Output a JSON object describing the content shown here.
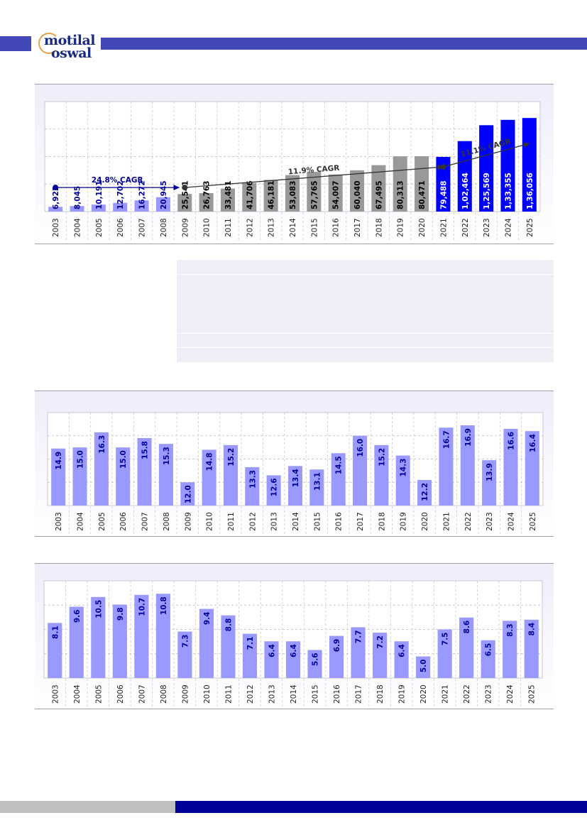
{
  "brand": {
    "logo_line1": "motilal",
    "logo_line2": "oswal"
  },
  "colors": {
    "header": "#4347b8",
    "bar_light": "#9999ff",
    "bar_grey": "#999999",
    "bar_blue": "#0000ff",
    "footer_grey": "#c0c0c0",
    "footer_blue": "#000099",
    "annotation_dark": "#333333",
    "annotation_blue": "#000099"
  },
  "chart_data": [
    {
      "type": "bar",
      "categories": [
        "2003",
        "2004",
        "2005",
        "2006",
        "2007",
        "2008",
        "2009",
        "2010",
        "2011",
        "2012",
        "2013",
        "2014",
        "2015",
        "2016",
        "2017",
        "2018",
        "2019",
        "2020",
        "2021",
        "2022",
        "2023",
        "2024",
        "2025"
      ],
      "values": [
        6922,
        8045,
        10191,
        12702,
        16272,
        20945,
        25541,
        26763,
        33481,
        41706,
        46181,
        53083,
        57765,
        54007,
        60040,
        67495,
        80313,
        80471,
        79488,
        102464,
        125569,
        133355,
        136056
      ],
      "labels": [
        "6,922",
        "8,045",
        "10,191",
        "12,702",
        "16,272",
        "20,945",
        "25,541",
        "26,763",
        "33,481",
        "41,706",
        "46,181",
        "53,083",
        "57,765",
        "54,007",
        "60,040",
        "67,495",
        "80,313",
        "80,471",
        "79,488",
        "1,02,464",
        "1,25,569",
        "1,33,355",
        "1,36,056"
      ],
      "bar_colors": [
        "#9999ff",
        "#9999ff",
        "#9999ff",
        "#9999ff",
        "#9999ff",
        "#9999ff",
        "#999999",
        "#999999",
        "#999999",
        "#999999",
        "#999999",
        "#999999",
        "#999999",
        "#999999",
        "#999999",
        "#999999",
        "#999999",
        "#999999",
        "#0000ff",
        "#0000ff",
        "#0000ff",
        "#0000ff",
        "#0000ff"
      ],
      "label_colors": [
        "#000099",
        "#000099",
        "#000099",
        "#000099",
        "#000099",
        "#000099",
        "#000000",
        "#000000",
        "#000000",
        "#000000",
        "#000000",
        "#000000",
        "#000000",
        "#000000",
        "#000000",
        "#000000",
        "#000000",
        "#000000",
        "#ffffff",
        "#ffffff",
        "#ffffff",
        "#ffffff",
        "#ffffff"
      ],
      "ylim": [
        0,
        160000
      ],
      "grid": true,
      "annotations": [
        {
          "text": "24.8% CAGR",
          "from": [
            "2003",
            35000
          ],
          "to": [
            "2009",
            35000
          ],
          "color": "#000099"
        },
        {
          "text": "11.9% CAGR",
          "from": [
            "2009",
            35000
          ],
          "to": [
            "2021",
            65000
          ],
          "color": "#333333"
        },
        {
          "text": "11.1% CAGR",
          "from": [
            "2021",
            65000
          ],
          "to": [
            "2025",
            99000
          ],
          "color": "#333333"
        }
      ]
    },
    {
      "type": "bar",
      "categories": [
        "2003",
        "2004",
        "2005",
        "2006",
        "2007",
        "2008",
        "2009",
        "2010",
        "2011",
        "2012",
        "2013",
        "2014",
        "2015",
        "2016",
        "2017",
        "2018",
        "2019",
        "2020",
        "2021",
        "2022",
        "2023",
        "2024",
        "2025"
      ],
      "values": [
        14.9,
        15.0,
        16.3,
        15.0,
        15.8,
        15.3,
        12.0,
        14.8,
        15.2,
        13.3,
        12.6,
        13.4,
        13.1,
        14.5,
        16.0,
        15.2,
        14.3,
        12.2,
        16.7,
        16.9,
        13.9,
        16.6,
        16.4
      ],
      "labels": [
        "14.9",
        "15.0",
        "16.3",
        "15.0",
        "15.8",
        "15.3",
        "12.0",
        "14.8",
        "15.2",
        "13.3",
        "12.6",
        "13.4",
        "13.1",
        "14.5",
        "16.0",
        "15.2",
        "14.3",
        "12.2",
        "16.7",
        "16.9",
        "13.9",
        "16.6",
        "16.4"
      ],
      "ylim": [
        10,
        18
      ],
      "grid": true
    },
    {
      "type": "bar",
      "categories": [
        "2003",
        "2004",
        "2005",
        "2006",
        "2007",
        "2008",
        "2009",
        "2010",
        "2011",
        "2012",
        "2013",
        "2014",
        "2015",
        "2016",
        "2017",
        "2018",
        "2019",
        "2020",
        "2021",
        "2022",
        "2023",
        "2024",
        "2025"
      ],
      "values": [
        8.1,
        9.6,
        10.5,
        9.8,
        10.7,
        10.8,
        7.3,
        9.4,
        8.8,
        7.1,
        6.4,
        6.4,
        5.6,
        6.9,
        7.7,
        7.2,
        6.4,
        5.0,
        7.5,
        8.6,
        6.5,
        8.3,
        8.4
      ],
      "labels": [
        "8.1",
        "9.6",
        "10.5",
        "9.8",
        "10.7",
        "10.8",
        "7.3",
        "9.4",
        "8.8",
        "7.1",
        "6.4",
        "6.4",
        "5.6",
        "6.9",
        "7.7",
        "7.2",
        "6.4",
        "5.0",
        "7.5",
        "8.6",
        "6.5",
        "8.3",
        "8.4"
      ],
      "ylim": [
        3,
        12
      ],
      "grid": true
    }
  ]
}
